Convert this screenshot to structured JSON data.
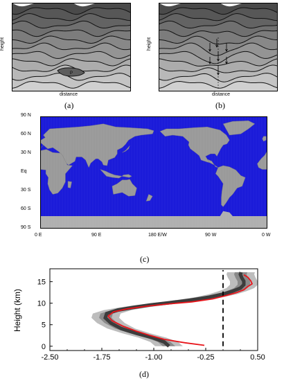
{
  "panel_a": {
    "ylabel": "height",
    "xlabel": "distance",
    "parcel_label": "P",
    "caption": "(a)",
    "layer_shades": [
      "#4a4a4a",
      "#575757",
      "#636363",
      "#707070",
      "#7c7c7c",
      "#888888",
      "#949494",
      "#a0a0a0",
      "#acacac",
      "#b8b8b8",
      "#c4c4c4",
      "#d0d0d0"
    ],
    "parcel_color": "#5e5e5e"
  },
  "panel_b": {
    "ylabel": "height",
    "xlabel": "distance",
    "caption": "(b)"
  },
  "panel_c": {
    "caption": "(c)",
    "ocean_color": "#1b1bd9",
    "land_color": "#9a9a9a",
    "ice_color": "#b0b0b0",
    "lat_ticks": [
      "90 N",
      "60 N",
      "30 N",
      "Eq",
      "30 S",
      "60 S",
      "90 S"
    ],
    "lon_ticks": [
      "0 E",
      "90 E",
      "180 E/W",
      "90 W",
      "0 W"
    ]
  },
  "panel_d": {
    "caption": "(d)",
    "chart_data": {
      "type": "line",
      "title": "",
      "xlabel": "",
      "ylabel": "Height (km)",
      "xlim": [
        -2.5,
        0.5
      ],
      "ylim": [
        -1,
        18
      ],
      "x_ticks": [
        -2.5,
        -1.75,
        -1.0,
        -0.25,
        0.5
      ],
      "x_tick_labels": [
        "-2.50",
        "-1.75",
        "-1.00",
        "-0.25",
        "0.50"
      ],
      "y_ticks": [
        0,
        5,
        10,
        15
      ],
      "y_tick_labels": [
        "0",
        "5",
        "10",
        "15"
      ],
      "series": [
        {
          "style": "red-line",
          "color": "#e8141a",
          "points": [
            [
              -0.27,
              0.2
            ],
            [
              -0.55,
              0.8
            ],
            [
              -0.85,
              1.6
            ],
            [
              -1.05,
              2.5
            ],
            [
              -1.25,
              3.5
            ],
            [
              -1.45,
              4.7
            ],
            [
              -1.6,
              5.9
            ],
            [
              -1.66,
              7.0
            ],
            [
              -1.58,
              8.0
            ],
            [
              -1.38,
              8.7
            ],
            [
              -1.1,
              9.3
            ],
            [
              -0.8,
              9.8
            ],
            [
              -0.45,
              10.3
            ],
            [
              -0.15,
              11.0
            ],
            [
              0.05,
              11.8
            ],
            [
              0.2,
              12.5
            ],
            [
              0.3,
              13.1
            ],
            [
              0.36,
              13.9
            ],
            [
              0.42,
              14.5
            ],
            [
              0.4,
              15.2
            ],
            [
              0.36,
              16.0
            ],
            [
              0.3,
              16.6
            ]
          ]
        },
        {
          "style": "dark-band-center",
          "color": "#3c3c3c",
          "points": [
            [
              -0.78,
              0.0
            ],
            [
              -0.85,
              1.0
            ],
            [
              -1.02,
              2.0
            ],
            [
              -1.25,
              3.0
            ],
            [
              -1.47,
              4.1
            ],
            [
              -1.62,
              5.4
            ],
            [
              -1.7,
              6.6
            ],
            [
              -1.68,
              7.6
            ],
            [
              -1.52,
              8.4
            ],
            [
              -1.3,
              9.0
            ],
            [
              -1.05,
              9.6
            ],
            [
              -0.78,
              10.1
            ],
            [
              -0.48,
              10.7
            ],
            [
              -0.2,
              11.4
            ],
            [
              0.0,
              12.1
            ],
            [
              0.14,
              12.8
            ],
            [
              0.25,
              13.5
            ],
            [
              0.3,
              14.3
            ],
            [
              0.3,
              15.1
            ],
            [
              0.27,
              15.9
            ],
            [
              0.25,
              16.7
            ],
            [
              0.26,
              17.2
            ]
          ]
        },
        {
          "style": "dashed-reference",
          "color": "#000000",
          "points": [
            [
              0.0,
              0.0
            ],
            [
              0.0,
              17.7
            ]
          ]
        }
      ],
      "band_half_width": [
        0.09,
        0.2
      ]
    }
  }
}
